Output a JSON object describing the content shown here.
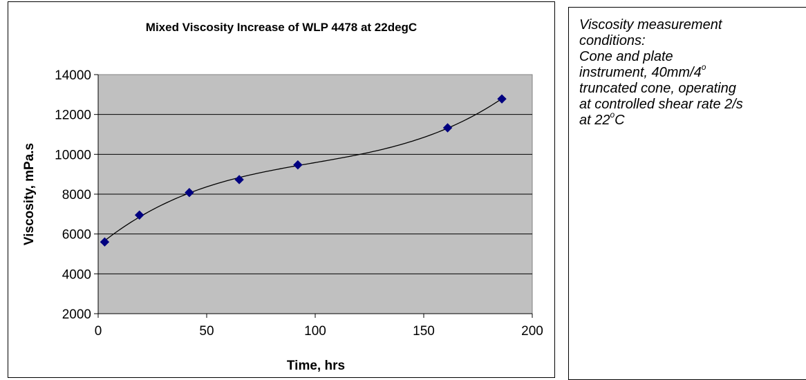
{
  "chart_data": {
    "type": "scatter",
    "title": "Mixed Viscosity Increase of WLP 4478 at 22degC",
    "xlabel": "Time, hrs",
    "ylabel": "Viscosity, mPa.s",
    "xlim": [
      0,
      200
    ],
    "ylim": [
      2000,
      14000
    ],
    "x_ticks": [
      "0",
      "50",
      "100",
      "150",
      "200"
    ],
    "y_ticks": [
      "2000",
      "4000",
      "6000",
      "8000",
      "10000",
      "12000",
      "14000"
    ],
    "grid": "horizontal",
    "series": [
      {
        "marker": "diamond",
        "color": "#000080",
        "trendline": "polynomial",
        "x": [
          3,
          19,
          42,
          65,
          92,
          161,
          186
        ],
        "y": [
          5600,
          6950,
          8080,
          8730,
          9470,
          11330,
          12780
        ]
      }
    ],
    "colors": {
      "plot_area": "#c0c0c0",
      "marker": "#000080",
      "trendline": "#000000"
    }
  },
  "notes": {
    "line1": "Viscosity measurement",
    "line2": "conditions:",
    "line3": "Cone and plate",
    "line4_pre": "instrument, 40mm/4",
    "line4_sup": "o",
    "line5": "truncated cone, operating",
    "line6": "at controlled shear rate 2/s",
    "line7_pre": "at 22",
    "line7_sup": "o",
    "line7_post": "C"
  }
}
